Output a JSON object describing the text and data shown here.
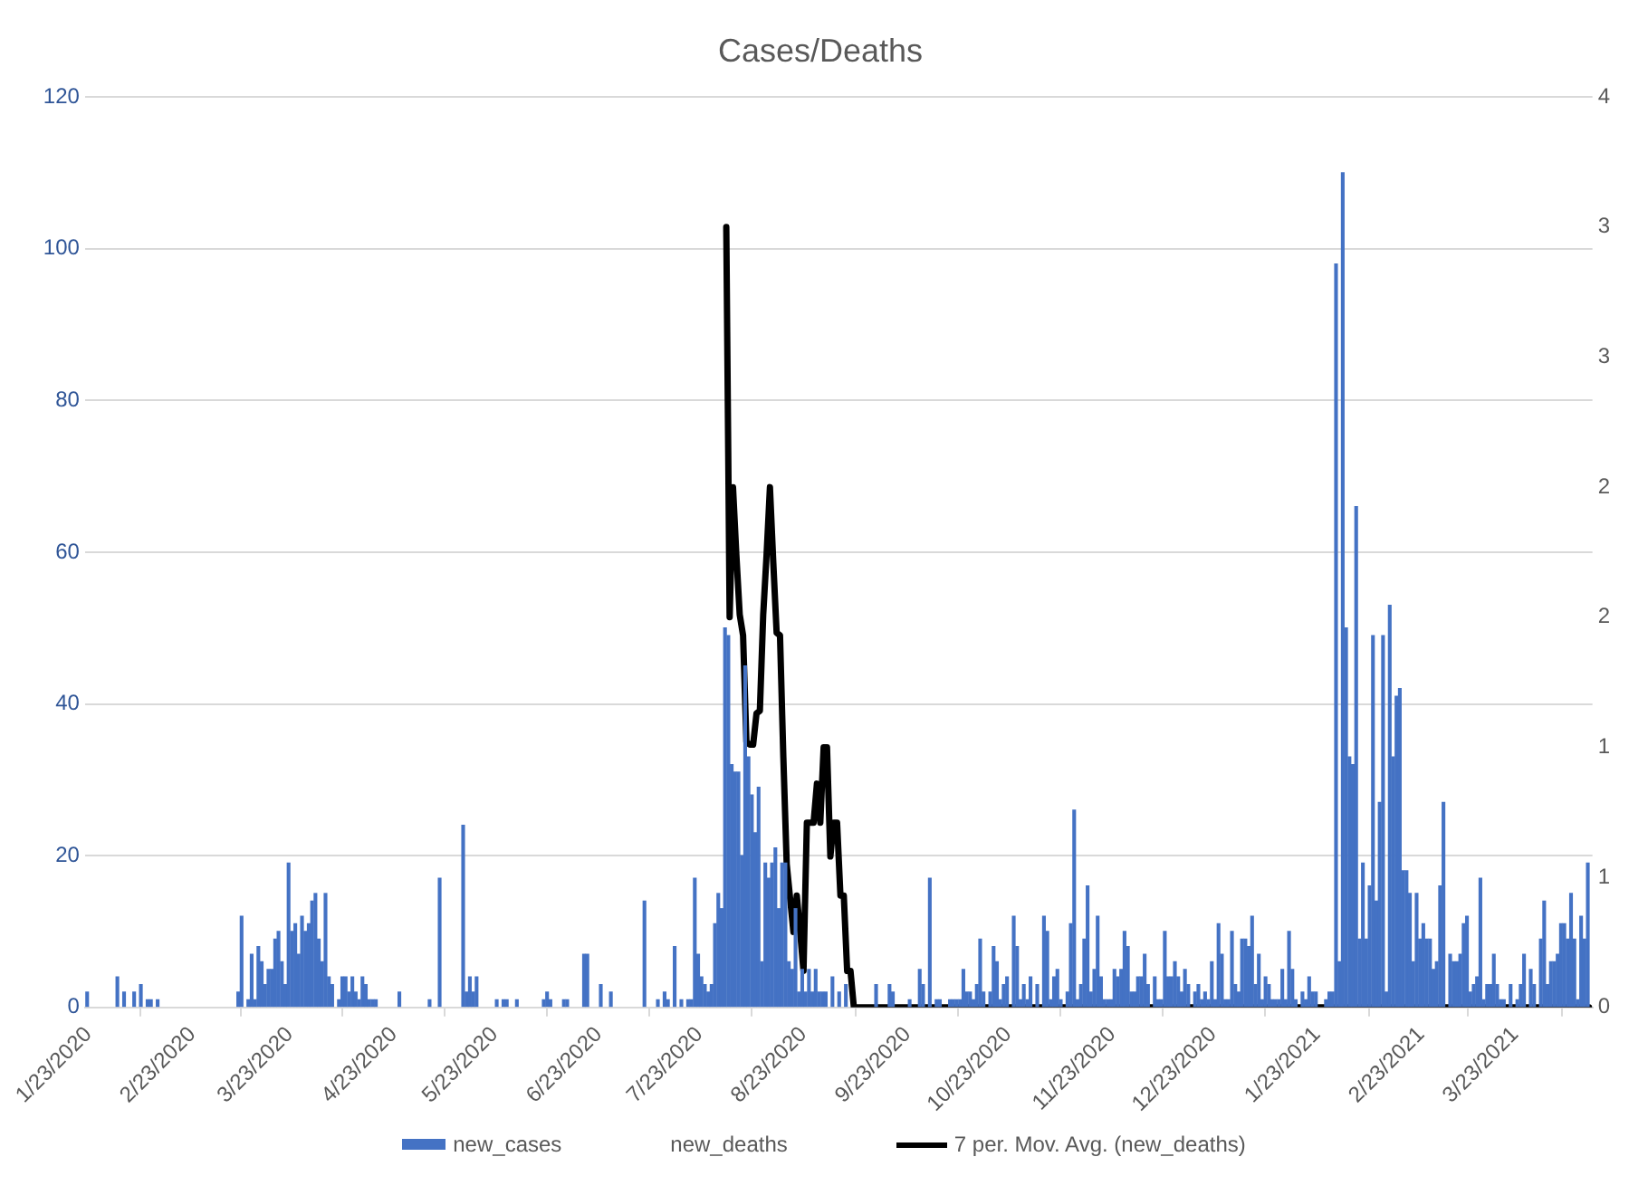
{
  "chart_data": {
    "type": "bar",
    "title": "Cases/Deaths",
    "xlim": [
      "2020-01-22",
      "2021-04-15"
    ],
    "xticks": [
      {
        "value": "2020-01-23",
        "label": "1/23/2020"
      },
      {
        "value": "2020-02-23",
        "label": "2/23/2020"
      },
      {
        "value": "2020-03-23",
        "label": "3/23/2020"
      },
      {
        "value": "2020-04-23",
        "label": "4/23/2020"
      },
      {
        "value": "2020-05-23",
        "label": "5/23/2020"
      },
      {
        "value": "2020-06-23",
        "label": "6/23/2020"
      },
      {
        "value": "2020-07-23",
        "label": "7/23/2020"
      },
      {
        "value": "2020-08-23",
        "label": "8/23/2020"
      },
      {
        "value": "2020-09-23",
        "label": "9/23/2020"
      },
      {
        "value": "2020-10-23",
        "label": "10/23/2020"
      },
      {
        "value": "2020-11-23",
        "label": "11/23/2020"
      },
      {
        "value": "2020-12-23",
        "label": "12/23/2020"
      },
      {
        "value": "2021-01-23",
        "label": "1/23/2021"
      },
      {
        "value": "2021-02-23",
        "label": "2/23/2021"
      },
      {
        "value": "2021-03-23",
        "label": "3/23/2021"
      }
    ],
    "ylim": [
      0,
      120
    ],
    "yticks": [
      0,
      20,
      40,
      60,
      80,
      100,
      120
    ],
    "y2lim": [
      0,
      3.5
    ],
    "y2ticks": [
      0,
      {
        "value": 0.5,
        "label": "1"
      },
      1,
      {
        "value": 1.5,
        "label": "2"
      },
      2,
      {
        "value": 2.5,
        "label": "3"
      },
      3,
      {
        "value": 3.5,
        "label": "4"
      }
    ],
    "grid": "y",
    "legend": "bottom",
    "series": [
      {
        "name": "new_cases",
        "color": "#4472c4",
        "x": [
          "2020-01-23",
          "2020-02-01",
          "2020-02-03",
          "2020-02-06",
          "2020-02-08",
          "2020-02-10",
          "2020-02-11",
          "2020-02-13",
          "2020-03-08",
          "2020-03-09",
          "2020-03-11",
          "2020-03-12",
          "2020-03-13",
          "2020-03-14",
          "2020-03-15",
          "2020-03-16",
          "2020-03-17",
          "2020-03-18",
          "2020-03-19",
          "2020-03-20",
          "2020-03-21",
          "2020-03-22",
          "2020-03-23",
          "2020-03-24",
          "2020-03-25",
          "2020-03-26",
          "2020-03-27",
          "2020-03-28",
          "2020-03-29",
          "2020-03-30",
          "2020-03-31",
          "2020-04-01",
          "2020-04-02",
          "2020-04-03",
          "2020-04-04",
          "2020-04-05",
          "2020-04-07",
          "2020-04-08",
          "2020-04-09",
          "2020-04-10",
          "2020-04-11",
          "2020-04-12",
          "2020-04-13",
          "2020-04-14",
          "2020-04-15",
          "2020-04-16",
          "2020-04-17",
          "2020-04-18",
          "2020-04-25",
          "2020-05-04",
          "2020-05-07",
          "2020-05-14",
          "2020-05-15",
          "2020-05-16",
          "2020-05-17",
          "2020-05-18",
          "2020-05-24",
          "2020-05-26",
          "2020-05-27",
          "2020-05-30",
          "2020-06-07",
          "2020-06-08",
          "2020-06-09",
          "2020-06-13",
          "2020-06-14",
          "2020-06-19",
          "2020-06-20",
          "2020-06-24",
          "2020-06-27",
          "2020-07-07",
          "2020-07-11",
          "2020-07-13",
          "2020-07-14",
          "2020-07-16",
          "2020-07-18",
          "2020-07-20",
          "2020-07-21",
          "2020-07-22",
          "2020-07-23",
          "2020-07-24",
          "2020-07-25",
          "2020-07-26",
          "2020-07-27",
          "2020-07-28",
          "2020-07-29",
          "2020-07-30",
          "2020-07-31",
          "2020-08-01",
          "2020-08-02",
          "2020-08-03",
          "2020-08-04",
          "2020-08-05",
          "2020-08-06",
          "2020-08-07",
          "2020-08-08",
          "2020-08-09",
          "2020-08-10",
          "2020-08-11",
          "2020-08-12",
          "2020-08-13",
          "2020-08-14",
          "2020-08-15",
          "2020-08-16",
          "2020-08-17",
          "2020-08-18",
          "2020-08-19",
          "2020-08-20",
          "2020-08-21",
          "2020-08-22",
          "2020-08-23",
          "2020-08-24",
          "2020-08-25",
          "2020-08-26",
          "2020-08-27",
          "2020-08-28",
          "2020-08-29",
          "2020-08-30",
          "2020-09-01",
          "2020-09-03",
          "2020-09-05",
          "2020-09-14",
          "2020-09-18",
          "2020-09-19",
          "2020-09-24",
          "2020-09-27",
          "2020-09-28",
          "2020-09-30",
          "2020-10-02",
          "2020-10-03",
          "2020-10-06",
          "2020-10-07",
          "2020-10-08",
          "2020-10-09",
          "2020-10-10",
          "2020-10-11",
          "2020-10-12",
          "2020-10-13",
          "2020-10-14",
          "2020-10-15",
          "2020-10-16",
          "2020-10-18",
          "2020-10-19",
          "2020-10-20",
          "2020-10-21",
          "2020-10-22",
          "2020-10-23",
          "2020-10-25",
          "2020-10-26",
          "2020-10-27",
          "2020-10-28",
          "2020-10-29",
          "2020-10-30",
          "2020-11-01",
          "2020-11-03",
          "2020-11-04",
          "2020-11-05",
          "2020-11-06",
          "2020-11-07",
          "2020-11-08",
          "2020-11-10",
          "2020-11-11",
          "2020-11-12",
          "2020-11-13",
          "2020-11-14",
          "2020-11-15",
          "2020-11-16",
          "2020-11-17",
          "2020-11-18",
          "2020-11-19",
          "2020-11-20",
          "2020-11-21",
          "2020-11-22",
          "2020-11-23",
          "2020-11-24",
          "2020-11-25",
          "2020-11-26",
          "2020-11-27",
          "2020-11-28",
          "2020-11-29",
          "2020-11-30",
          "2020-12-01",
          "2020-12-02",
          "2020-12-03",
          "2020-12-04",
          "2020-12-06",
          "2020-12-07",
          "2020-12-08",
          "2020-12-09",
          "2020-12-10",
          "2020-12-11",
          "2020-12-12",
          "2020-12-13",
          "2020-12-14",
          "2020-12-15",
          "2020-12-16",
          "2020-12-18",
          "2020-12-19",
          "2020-12-20",
          "2020-12-21",
          "2020-12-22",
          "2020-12-23",
          "2020-12-24",
          "2020-12-25",
          "2020-12-26",
          "2020-12-27",
          "2020-12-28",
          "2020-12-29",
          "2020-12-30",
          "2020-12-31",
          "2021-01-01",
          "2021-01-02",
          "2021-01-03",
          "2021-01-04",
          "2021-01-05",
          "2021-01-06",
          "2021-01-07",
          "2021-01-08",
          "2021-01-09",
          "2021-01-10",
          "2021-01-11",
          "2021-01-12",
          "2021-01-13",
          "2021-01-14",
          "2021-01-15",
          "2021-01-16",
          "2021-01-17",
          "2021-01-19",
          "2021-01-20",
          "2021-01-21",
          "2021-01-22",
          "2021-01-23",
          "2021-01-26",
          "2021-01-27",
          "2021-01-28",
          "2021-01-29",
          "2021-01-30",
          "2021-01-31",
          "2021-02-01",
          "2021-02-02",
          "2021-02-03",
          "2021-02-04",
          "2021-02-05",
          "2021-02-06",
          "2021-02-07",
          "2021-02-08",
          "2021-02-09",
          "2021-02-10",
          "2021-02-11",
          "2021-02-12",
          "2021-02-13",
          "2021-02-14",
          "2021-02-15",
          "2021-02-16",
          "2021-02-17",
          "2021-02-18",
          "2021-02-19",
          "2021-02-20",
          "2021-02-21",
          "2021-02-22",
          "2021-02-23",
          "2021-02-24",
          "2021-02-25",
          "2021-02-26",
          "2021-02-27",
          "2021-02-28",
          "2021-03-01",
          "2021-03-02",
          "2021-03-04",
          "2021-03-05",
          "2021-03-06",
          "2021-03-07",
          "2021-03-08",
          "2021-03-09",
          "2021-03-10",
          "2021-03-11",
          "2021-03-12",
          "2021-03-13",
          "2021-03-14",
          "2021-03-15",
          "2021-03-16",
          "2021-03-17",
          "2021-03-18",
          "2021-03-19",
          "2021-03-20",
          "2021-03-22",
          "2021-03-24",
          "2021-03-25",
          "2021-03-26",
          "2021-03-28",
          "2021-03-29",
          "2021-03-31",
          "2021-04-01",
          "2021-04-02",
          "2021-04-03",
          "2021-04-04",
          "2021-04-05",
          "2021-04-06",
          "2021-04-07",
          "2021-04-08",
          "2021-04-09",
          "2021-04-10",
          "2021-04-11",
          "2021-04-12",
          "2021-04-13",
          "2021-04-14"
        ],
        "values": [
          2,
          4,
          2,
          2,
          3,
          1,
          1,
          1,
          2,
          12,
          1,
          7,
          1,
          8,
          6,
          3,
          5,
          5,
          9,
          10,
          6,
          3,
          19,
          10,
          11,
          7,
          12,
          10,
          11,
          14,
          15,
          9,
          6,
          15,
          4,
          3,
          1,
          4,
          4,
          2,
          4,
          2,
          1,
          4,
          3,
          1,
          1,
          1,
          2,
          1,
          17,
          24,
          2,
          4,
          2,
          4,
          1,
          1,
          1,
          1,
          1,
          2,
          1,
          1,
          1,
          7,
          7,
          3,
          2,
          14,
          1,
          2,
          1,
          8,
          1,
          1,
          1,
          17,
          7,
          4,
          3,
          2,
          3,
          11,
          15,
          13,
          50,
          49,
          32,
          31,
          31,
          20,
          45,
          33,
          28,
          23,
          29,
          6,
          19,
          17,
          19,
          21,
          13,
          19,
          19,
          6,
          5,
          13,
          2,
          5,
          2,
          5,
          2,
          5,
          2,
          2,
          2,
          4,
          2,
          3,
          3,
          3,
          2,
          1,
          5,
          3,
          17,
          1,
          1,
          1,
          1,
          1,
          1,
          5,
          2,
          2,
          1,
          3,
          9,
          2,
          2,
          8,
          6,
          1,
          3,
          4,
          12,
          8,
          1,
          3,
          1,
          4,
          3,
          12,
          10,
          1,
          4,
          5,
          1,
          2,
          11,
          26,
          1,
          3,
          9,
          16,
          2,
          5,
          12,
          4,
          1,
          1,
          1,
          5,
          4,
          5,
          10,
          8,
          2,
          2,
          4,
          4,
          7,
          3,
          4,
          1,
          1,
          10,
          4,
          4,
          6,
          4,
          2,
          5,
          3,
          2,
          3,
          1,
          2,
          1,
          6,
          1,
          11,
          7,
          1,
          1,
          10,
          3,
          2,
          9,
          9,
          8,
          12,
          3,
          7,
          1,
          4,
          3,
          1,
          1,
          1,
          5,
          1,
          10,
          5,
          1,
          2,
          1,
          4,
          2,
          2,
          1,
          2,
          2,
          98,
          6,
          110,
          50,
          33,
          32,
          66,
          9,
          19,
          9,
          16,
          49,
          14,
          27,
          49,
          2,
          53,
          33,
          41,
          42,
          18,
          18,
          15,
          6,
          15,
          9,
          11,
          9,
          9,
          5,
          6,
          16,
          27,
          7,
          6,
          6,
          7,
          11,
          12,
          2,
          3,
          4,
          17,
          1,
          3,
          3,
          7,
          3,
          1,
          1,
          3,
          1,
          3,
          7,
          5,
          3,
          9,
          14,
          3,
          6,
          6,
          7,
          11,
          11,
          9,
          15,
          9,
          1,
          12,
          9,
          19
        ]
      },
      {
        "name": "new_deaths",
        "axis": "y2"
      },
      {
        "name": "7 per. Mov. Avg. (new_deaths)",
        "type": "line",
        "axis": "y2",
        "color": "#000000",
        "x": [
          "2020-07-31",
          "2020-08-01",
          "2020-08-02",
          "2020-08-03",
          "2020-08-04",
          "2020-08-05",
          "2020-08-06",
          "2020-08-07",
          "2020-08-08",
          "2020-08-09",
          "2020-08-10",
          "2020-08-11",
          "2020-08-12",
          "2020-08-13",
          "2020-08-14",
          "2020-08-15",
          "2020-08-16",
          "2020-08-17",
          "2020-08-18",
          "2020-08-19",
          "2020-08-20",
          "2020-08-21",
          "2020-08-22",
          "2020-08-23",
          "2020-08-24",
          "2020-08-25",
          "2020-08-26",
          "2020-08-27",
          "2020-08-28",
          "2020-08-29",
          "2020-08-30",
          "2020-08-31",
          "2020-09-01",
          "2020-09-02",
          "2020-09-03",
          "2020-09-04",
          "2020-09-05",
          "2020-09-06",
          "2020-09-07",
          "2021-04-14"
        ],
        "values": [
          3.0,
          1.5,
          2.0,
          1.74,
          1.51,
          1.43,
          1.02,
          1.01,
          1.01,
          1.13,
          1.14,
          1.51,
          1.74,
          2.0,
          1.71,
          1.44,
          1.43,
          0.96,
          0.55,
          0.42,
          0.29,
          0.43,
          0.29,
          0.14,
          0.71,
          0.71,
          0.71,
          0.86,
          0.71,
          1.0,
          1.0,
          0.58,
          0.71,
          0.71,
          0.43,
          0.43,
          0.14,
          0.14,
          0,
          0
        ]
      }
    ]
  }
}
